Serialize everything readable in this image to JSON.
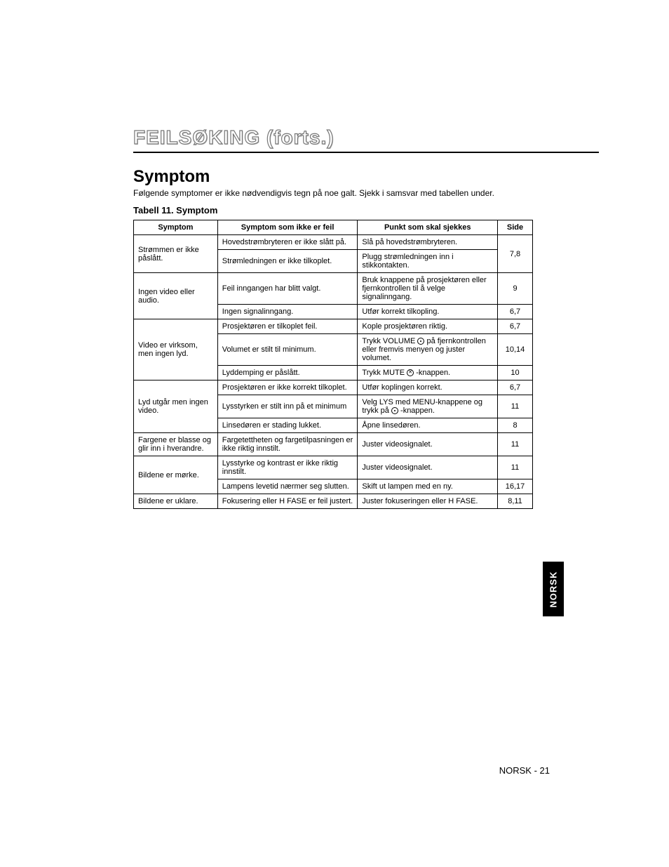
{
  "title": "FEILSØKING (forts.)",
  "section_heading": "Symptom",
  "intro": "Følgende symptomer er ikke nødvendigvis tegn på noe galt. Sjekk i samsvar med tabellen under.",
  "table_caption": "Tabell 11. Symptom",
  "columns": [
    "Symptom",
    "Symptom som ikke er feil",
    "Punkt som skal sjekkes",
    "Side"
  ],
  "rows": [
    {
      "symptom": "Strømmen er ikke påslått.",
      "symptom_rowspan": 2,
      "notfault": "Hovedstrømbryteren er ikke slått på.",
      "check": "Slå på hovedstrømbryteren.",
      "side": "7,8",
      "side_rowspan": 2
    },
    {
      "notfault": "Strømledningen er ikke tilkoplet.",
      "check": "Plugg strømledningen inn i stikkontakten."
    },
    {
      "symptom": "Ingen video eller audio.",
      "symptom_rowspan": 2,
      "notfault": "Feil inngangen har blitt valgt.",
      "check": "Bruk knappene på prosjektøren eller fjernkontrollen til å velge signalinngang.",
      "side": "9"
    },
    {
      "notfault": "Ingen signalinngang.",
      "check": "Utfør korrekt tilkopling.",
      "side": "6,7"
    },
    {
      "symptom": "Video er virksom, men ingen lyd.",
      "symptom_rowspan": 3,
      "notfault": "Prosjektøren er tilkoplet feil.",
      "check": "Kople prosjektøren riktig.",
      "side": "6,7"
    },
    {
      "notfault": "Volumet er stilt til minimum.",
      "check_pre": "Trykk VOLUME ",
      "check_post": " på fjernkontrollen eller fremvis menyen og juster volumet.",
      "icon": "circle",
      "side": "10,14"
    },
    {
      "notfault": "Lyddemping er påslått.",
      "check_pre": "Trykk MUTE ",
      "check_post": " -knappen.",
      "icon": "mute",
      "side": "10"
    },
    {
      "symptom": "Lyd utgår men ingen video.",
      "symptom_rowspan": 3,
      "notfault": "Prosjektøren er ikke korrekt tilkoplet.",
      "check": "Utfør koplingen korrekt.",
      "side": "6,7"
    },
    {
      "notfault": "Lysstyrken er stilt inn på et minimum",
      "check_pre": "Velg LYS med MENU-knappene og trykk på ",
      "check_post": " -knappen.",
      "icon": "circle",
      "side": "11"
    },
    {
      "notfault": "Linsedøren er stading lukket.",
      "check": "Åpne linsedøren.",
      "side": "8"
    },
    {
      "symptom": "Fargene er blasse og glir inn i hverandre.",
      "notfault": "Fargetettheten og fargetilpasningen er ikke riktig innstilt.",
      "check": "Juster videosignalet.",
      "side": "11"
    },
    {
      "symptom": "Bildene er mørke.",
      "symptom_rowspan": 2,
      "notfault": "Lysstyrke og kontrast er ikke riktig innstilt.",
      "check": "Juster videosignalet.",
      "side": "11"
    },
    {
      "notfault": "Lampens levetid nærmer seg  slutten.",
      "check": "Skift ut lampen med en ny.",
      "side": "16,17"
    },
    {
      "symptom": "Bildene er uklare.",
      "notfault": "Fokusering eller H FASE er feil justert.",
      "check": "Juster fokuseringen eller H FASE.",
      "side": "8,11"
    }
  ],
  "footer": "NORSK - 21",
  "side_tab": "NORSK"
}
